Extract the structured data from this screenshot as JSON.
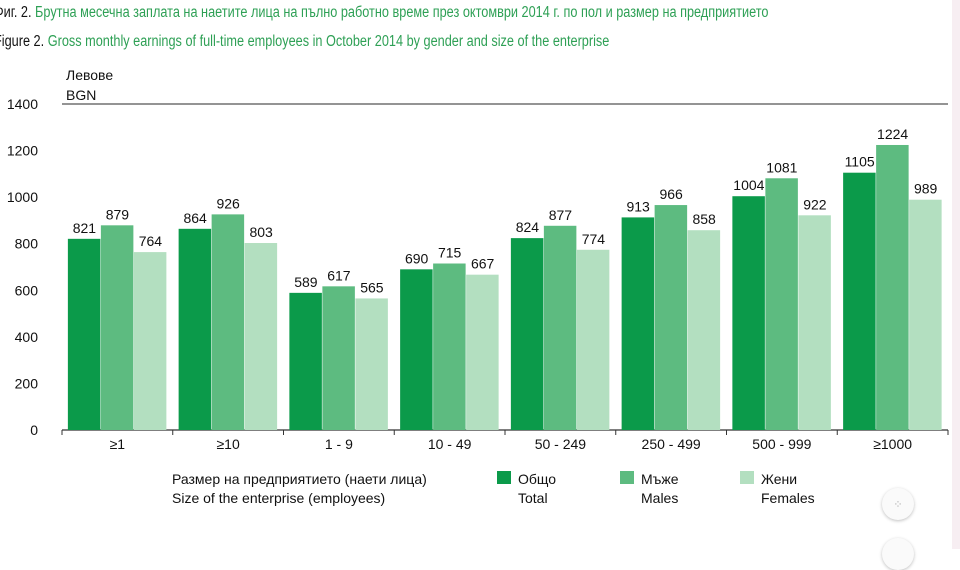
{
  "title_bg": {
    "prefix": "Фиг. 2.",
    "text": "Брутна месечна заплата на наетите лица на пълно работно време през октомври 2014 г. по пол и размер на предприятието"
  },
  "title_en": {
    "prefix": "Figure 2.",
    "text": "Gross monthly earnings of full-time employees in October 2014 by gender and size of the enterprise"
  },
  "chart_data": {
    "type": "bar",
    "ylabel_bg": "Левове",
    "ylabel_en": "BGN",
    "xlabel_bg": "Размер на предприятието (наети лица)",
    "xlabel_en": "Size of the enterprise (employees)",
    "ylim": [
      0,
      1400
    ],
    "yticks": [
      "0",
      "200",
      "400",
      "600",
      "800",
      "1000",
      "1200",
      "1400"
    ],
    "grid": false,
    "legend_position": "bottom",
    "categories": [
      "≥1",
      "≥10",
      "1 - 9",
      "10 - 49",
      "50 - 249",
      "250 - 499",
      "500 - 999",
      "≥1000"
    ],
    "series": [
      {
        "name_bg": "Общо",
        "name_en": "Total",
        "color": "#0b9a4a",
        "values": [
          821,
          864,
          589,
          690,
          824,
          913,
          1004,
          1105
        ]
      },
      {
        "name_bg": "Мъже",
        "name_en": "Males",
        "color": "#5dbb80",
        "values": [
          879,
          926,
          617,
          715,
          877,
          966,
          1081,
          1224
        ]
      },
      {
        "name_bg": "Жени",
        "name_en": "Females",
        "color": "#b3dfc0",
        "values": [
          764,
          803,
          565,
          667,
          774,
          858,
          922,
          989
        ]
      }
    ]
  },
  "fab_icon": "collapse-icon"
}
